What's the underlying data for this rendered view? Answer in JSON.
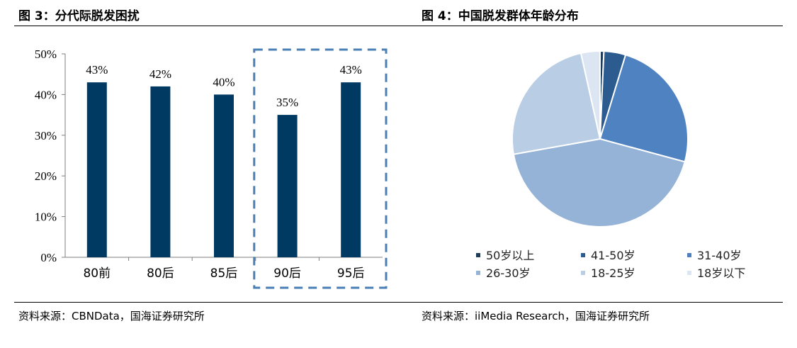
{
  "left": {
    "title": "图 3：分代际脱发困扰",
    "source": "资料来源：CBNData，国海证券研究所"
  },
  "right": {
    "title": "图 4：中国脱发群体年龄分布",
    "source": "资料来源：iiMedia Research，国海证券研究所"
  },
  "colors": {
    "bar": "#003a63",
    "highlight_box": "#4a7fb5",
    "pie": [
      "#1f3b5a",
      "#2c5c8f",
      "#4e82c0",
      "#95b3d7",
      "#b9cde5",
      "#dce6f2"
    ]
  },
  "chart_data": [
    {
      "type": "bar",
      "categories": [
        "80前",
        "80后",
        "85后",
        "90后",
        "95后"
      ],
      "values": [
        43,
        42,
        40,
        35,
        43
      ],
      "value_labels": [
        "43%",
        "42%",
        "40%",
        "35%",
        "43%"
      ],
      "ylim": [
        0,
        50
      ],
      "yticks": [
        "0%",
        "10%",
        "20%",
        "30%",
        "40%",
        "50%"
      ],
      "highlighted_categories": [
        "90后",
        "95后"
      ],
      "title": "",
      "xlabel": "",
      "ylabel": ""
    },
    {
      "type": "pie",
      "labels": [
        "50岁以上",
        "41-50岁",
        "31-40岁",
        "26-30岁",
        "18-25岁",
        "18岁以下"
      ],
      "values": [
        0.7,
        4.0,
        24.5,
        43.0,
        24.3,
        3.5
      ],
      "legend_position": "bottom"
    }
  ]
}
